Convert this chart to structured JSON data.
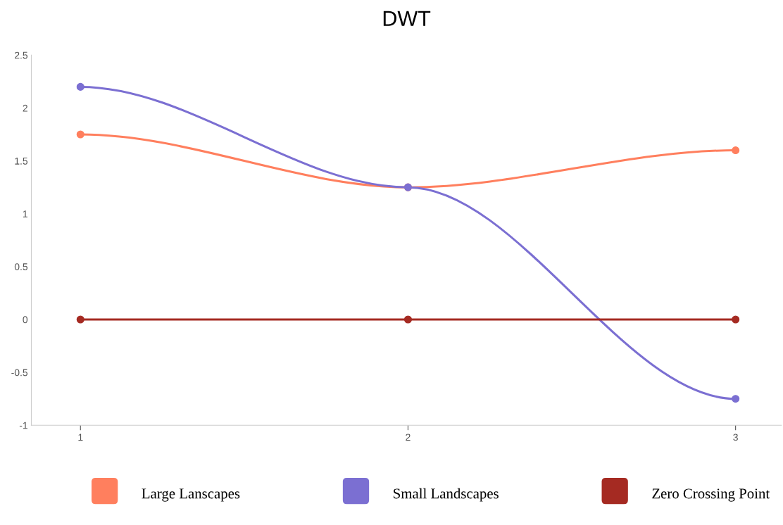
{
  "chart_data": {
    "type": "line",
    "title": "DWT",
    "x": [
      1,
      2,
      3
    ],
    "series": [
      {
        "name": "Large Lanscapes",
        "color": "#ff7f5e",
        "values": [
          1.75,
          1.25,
          1.6
        ]
      },
      {
        "name": "Small Landscapes",
        "color": "#7b6fd2",
        "values": [
          2.2,
          1.25,
          -0.75
        ]
      },
      {
        "name": "Zero Crossing Point",
        "color": "#a52a22",
        "values": [
          0,
          0,
          0
        ]
      }
    ],
    "xlim": [
      0.85,
      3.14
    ],
    "xticks": [
      1,
      2,
      3
    ],
    "ylim": [
      -1,
      2.5
    ],
    "yticks": [
      -1,
      -0.5,
      0,
      0.5,
      1,
      1.5,
      2,
      2.5
    ],
    "grid": false,
    "legend": "bottom",
    "marker": "circle",
    "line_style": "solid"
  }
}
